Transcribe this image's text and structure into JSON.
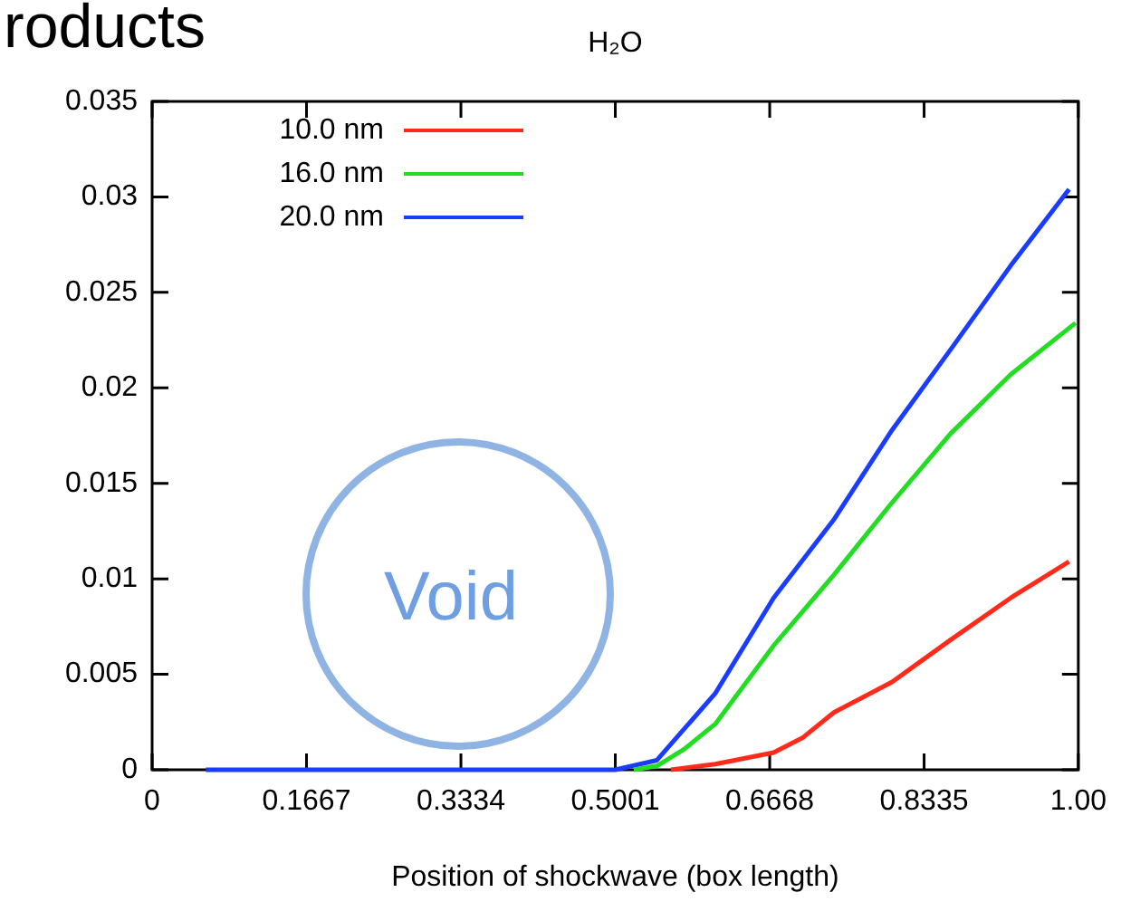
{
  "chart_data": {
    "type": "line",
    "title": "H₂O",
    "xlabel": "Position of shockwave (box length)",
    "annotations": [
      "roducts",
      "Void"
    ],
    "xlim": [
      0,
      1
    ],
    "xticks": [
      0,
      0.1667,
      0.3334,
      0.5001,
      0.6668,
      0.8335,
      {
        "value": 1,
        "label": "1.00"
      }
    ],
    "ylim": [
      0,
      0.035
    ],
    "yticks": [
      0,
      0.005,
      0.01,
      0.015,
      0.02,
      0.025,
      0.03,
      0.035
    ],
    "grid": false,
    "legend": "top left",
    "marker": "none",
    "line_style": "solid",
    "series": [
      {
        "name": "10.0 nm",
        "color": "#ff2a1a",
        "x": [
          0.56,
          0.608,
          0.671,
          0.703,
          0.736,
          0.799,
          0.862,
          0.927,
          0.99
        ],
        "values": [
          0,
          0.0003,
          0.0009,
          0.0017,
          0.003,
          0.0046,
          0.0068,
          0.009,
          0.0109
        ]
      },
      {
        "name": "16.0 nm",
        "color": "#22dd22",
        "x": [
          0.52,
          0.545,
          0.575,
          0.608,
          0.671,
          0.736,
          0.799,
          0.862,
          0.927,
          0.997
        ],
        "values": [
          0,
          0.0002,
          0.0011,
          0.0024,
          0.0065,
          0.0102,
          0.014,
          0.0176,
          0.0207,
          0.0234
        ]
      },
      {
        "name": "20.0 nm",
        "color": "#1a3cff",
        "x": [
          0.058,
          0.5,
          0.545,
          0.608,
          0.671,
          0.736,
          0.799,
          0.862,
          0.927,
          0.99
        ],
        "values": [
          0,
          0,
          0.0005,
          0.004,
          0.009,
          0.0131,
          0.0178,
          0.022,
          0.0264,
          0.0304
        ]
      }
    ]
  }
}
